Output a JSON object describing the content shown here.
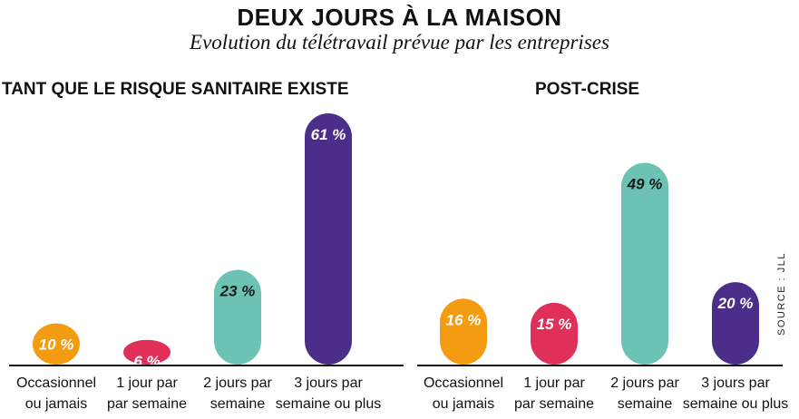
{
  "title": "DEUX JOURS À LA MAISON",
  "subtitle": "Evolution du télétravail prévue par les entreprises",
  "source": "SOURCE : JLL",
  "chart_data": [
    {
      "type": "bar",
      "title": "TANT QUE LE RISQUE SANITAIRE EXISTE",
      "categories": [
        [
          "Occasionnel",
          "ou jamais"
        ],
        [
          "1 jour par",
          "par semaine"
        ],
        [
          "2 jours par",
          "semaine"
        ],
        [
          "3 jours par",
          "semaine ou plus"
        ]
      ],
      "values": [
        10,
        6,
        23,
        61
      ],
      "labels": [
        "10 %",
        "6 %",
        "23 %",
        "61 %"
      ],
      "colors": [
        "#f39c12",
        "#e0305a",
        "#6cc3b3",
        "#4b2e8a"
      ],
      "label_colors": [
        "#ffffff",
        "#ffffff",
        "#1a1a1a",
        "#ffffff"
      ],
      "ylim": [
        0,
        61
      ]
    },
    {
      "type": "bar",
      "title": "POST-CRISE",
      "categories": [
        [
          "Occasionnel",
          "ou jamais"
        ],
        [
          "1 jour par",
          "par semaine"
        ],
        [
          "2 jours par",
          "semaine"
        ],
        [
          "3 jours par",
          "semaine ou plus"
        ]
      ],
      "values": [
        16,
        15,
        49,
        20
      ],
      "labels": [
        "16 %",
        "15 %",
        "49 %",
        "20 %"
      ],
      "colors": [
        "#f39c12",
        "#e0305a",
        "#6cc3b3",
        "#4b2e8a"
      ],
      "label_colors": [
        "#ffffff",
        "#ffffff",
        "#1a1a1a",
        "#ffffff"
      ],
      "ylim": [
        0,
        61
      ]
    }
  ]
}
